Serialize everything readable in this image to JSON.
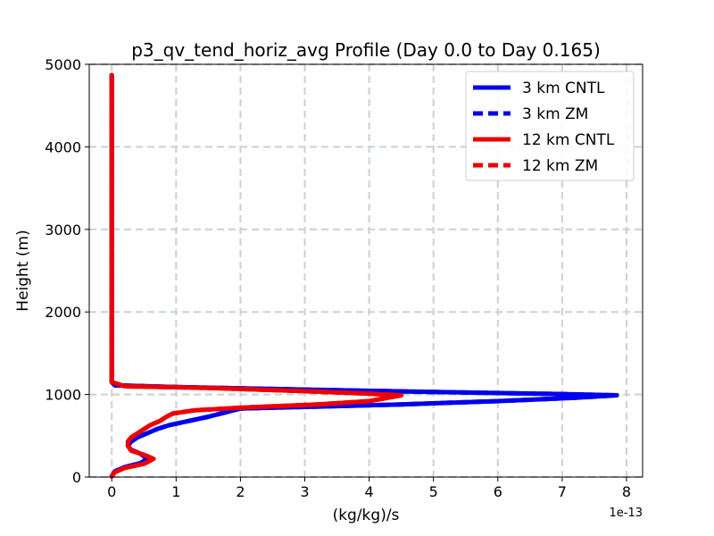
{
  "chart_data": {
    "type": "line",
    "title": "p3_qv_tend_horiz_avg Profile (Day 0.0 to Day 0.165)",
    "xlabel": "(kg/kg)/s",
    "ylabel": "Height (m)",
    "x_offset_text": "1e-13",
    "xlim": [
      -0.35,
      8.25
    ],
    "ylim": [
      0,
      5000
    ],
    "xticks": [
      0,
      1,
      2,
      3,
      4,
      5,
      6,
      7,
      8
    ],
    "xtick_labels": [
      "0",
      "1",
      "2",
      "3",
      "4",
      "5",
      "6",
      "7",
      "8"
    ],
    "yticks": [
      0,
      1000,
      2000,
      3000,
      4000,
      5000
    ],
    "ytick_labels": [
      "0",
      "1000",
      "2000",
      "3000",
      "4000",
      "5000"
    ],
    "grid": true,
    "legend_position": "top-right",
    "series": [
      {
        "name": "3 km CNTL",
        "color": "#0000ee",
        "dash": "solid",
        "points": [
          [
            0.0,
            10
          ],
          [
            0.05,
            70
          ],
          [
            0.2,
            120
          ],
          [
            0.45,
            170
          ],
          [
            0.55,
            220
          ],
          [
            0.45,
            280
          ],
          [
            0.3,
            330
          ],
          [
            0.25,
            380
          ],
          [
            0.3,
            430
          ],
          [
            0.4,
            480
          ],
          [
            0.55,
            530
          ],
          [
            0.7,
            580
          ],
          [
            0.9,
            630
          ],
          [
            1.2,
            680
          ],
          [
            1.5,
            730
          ],
          [
            1.75,
            780
          ],
          [
            2.0,
            830
          ],
          [
            3.0,
            850
          ],
          [
            4.5,
            880
          ],
          [
            6.0,
            920
          ],
          [
            7.2,
            960
          ],
          [
            7.85,
            990
          ],
          [
            7.0,
            1005
          ],
          [
            5.0,
            1030
          ],
          [
            3.0,
            1060
          ],
          [
            1.0,
            1090
          ],
          [
            0.05,
            1110
          ],
          [
            0.0,
            1150
          ],
          [
            0.0,
            1500
          ],
          [
            0.0,
            2000
          ],
          [
            0.0,
            3000
          ],
          [
            0.0,
            4000
          ],
          [
            0.0,
            4870
          ]
        ]
      },
      {
        "name": "3 km ZM",
        "color": "#0000ee",
        "dash": "dashed",
        "points": [
          [
            0.0,
            10
          ],
          [
            0.05,
            70
          ],
          [
            0.2,
            120
          ],
          [
            0.45,
            170
          ],
          [
            0.55,
            220
          ],
          [
            0.45,
            280
          ],
          [
            0.3,
            330
          ],
          [
            0.25,
            380
          ],
          [
            0.3,
            430
          ],
          [
            0.4,
            480
          ],
          [
            0.55,
            530
          ],
          [
            0.7,
            580
          ],
          [
            0.9,
            630
          ],
          [
            1.2,
            680
          ],
          [
            1.5,
            730
          ],
          [
            1.75,
            780
          ],
          [
            2.0,
            830
          ],
          [
            3.0,
            850
          ],
          [
            4.5,
            880
          ],
          [
            6.0,
            920
          ],
          [
            7.2,
            960
          ],
          [
            7.85,
            990
          ],
          [
            7.0,
            1005
          ],
          [
            5.0,
            1030
          ],
          [
            3.0,
            1060
          ],
          [
            1.0,
            1090
          ],
          [
            0.05,
            1110
          ],
          [
            0.0,
            1150
          ],
          [
            0.0,
            1500
          ],
          [
            0.0,
            2000
          ],
          [
            0.0,
            3000
          ],
          [
            0.0,
            4000
          ],
          [
            0.0,
            4870
          ]
        ]
      },
      {
        "name": "12 km CNTL",
        "color": "#ee0000",
        "dash": "solid",
        "points": [
          [
            0.0,
            10
          ],
          [
            0.05,
            60
          ],
          [
            0.2,
            110
          ],
          [
            0.5,
            160
          ],
          [
            0.65,
            220
          ],
          [
            0.5,
            270
          ],
          [
            0.3,
            320
          ],
          [
            0.25,
            380
          ],
          [
            0.25,
            430
          ],
          [
            0.3,
            480
          ],
          [
            0.4,
            530
          ],
          [
            0.5,
            580
          ],
          [
            0.6,
            630
          ],
          [
            0.75,
            680
          ],
          [
            0.85,
            730
          ],
          [
            0.95,
            770
          ],
          [
            1.3,
            810
          ],
          [
            2.0,
            840
          ],
          [
            3.2,
            880
          ],
          [
            4.0,
            920
          ],
          [
            4.5,
            990
          ],
          [
            4.0,
            1010
          ],
          [
            3.0,
            1040
          ],
          [
            1.5,
            1080
          ],
          [
            0.2,
            1100
          ],
          [
            0.0,
            1150
          ],
          [
            0.0,
            1500
          ],
          [
            0.0,
            2000
          ],
          [
            0.0,
            3000
          ],
          [
            0.0,
            4000
          ],
          [
            0.0,
            4870
          ]
        ]
      },
      {
        "name": "12 km ZM",
        "color": "#ee0000",
        "dash": "dashed",
        "points": [
          [
            0.0,
            10
          ],
          [
            0.05,
            60
          ],
          [
            0.2,
            110
          ],
          [
            0.5,
            160
          ],
          [
            0.65,
            220
          ],
          [
            0.5,
            270
          ],
          [
            0.3,
            320
          ],
          [
            0.25,
            380
          ],
          [
            0.25,
            430
          ],
          [
            0.3,
            480
          ],
          [
            0.4,
            530
          ],
          [
            0.5,
            580
          ],
          [
            0.6,
            630
          ],
          [
            0.75,
            680
          ],
          [
            0.85,
            730
          ],
          [
            0.95,
            770
          ],
          [
            1.3,
            810
          ],
          [
            2.0,
            840
          ],
          [
            3.2,
            880
          ],
          [
            4.0,
            920
          ],
          [
            4.5,
            990
          ],
          [
            4.0,
            1010
          ],
          [
            3.0,
            1040
          ],
          [
            1.5,
            1080
          ],
          [
            0.2,
            1100
          ],
          [
            0.0,
            1150
          ],
          [
            0.0,
            1500
          ],
          [
            0.0,
            2000
          ],
          [
            0.0,
            3000
          ],
          [
            0.0,
            4000
          ],
          [
            0.0,
            4870
          ]
        ]
      }
    ]
  }
}
